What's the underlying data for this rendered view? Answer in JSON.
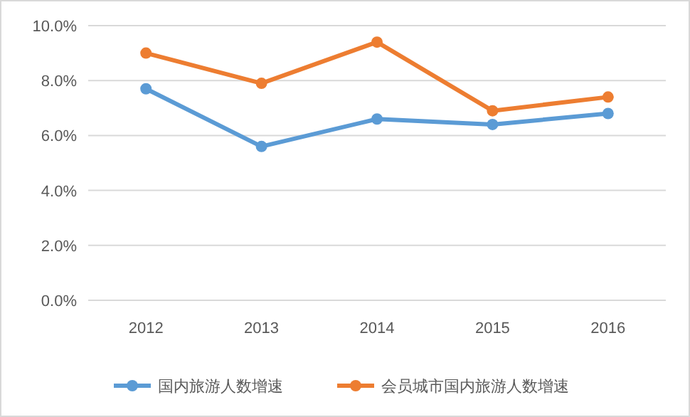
{
  "chart_data": {
    "type": "line",
    "categories": [
      "2012",
      "2013",
      "2014",
      "2015",
      "2016"
    ],
    "series": [
      {
        "name": "国内旅游人数增速",
        "color": "#5b9bd5",
        "values": [
          7.7,
          5.6,
          6.6,
          6.4,
          6.8
        ]
      },
      {
        "name": "会员城市国内旅游人数增速",
        "color": "#ed7d31",
        "values": [
          9.0,
          7.9,
          9.4,
          6.9,
          7.4
        ]
      }
    ],
    "ylim": [
      0,
      10
    ],
    "yticks": [
      {
        "value": 0,
        "label": "0.0%"
      },
      {
        "value": 2,
        "label": "2.0%"
      },
      {
        "value": 4,
        "label": "4.0%"
      },
      {
        "value": 6,
        "label": "6.0%"
      },
      {
        "value": 8,
        "label": "8.0%"
      },
      {
        "value": 10,
        "label": "10.0%"
      }
    ],
    "grid": "y",
    "legend": "bottom",
    "marker": "circle",
    "line_style": "solid"
  }
}
